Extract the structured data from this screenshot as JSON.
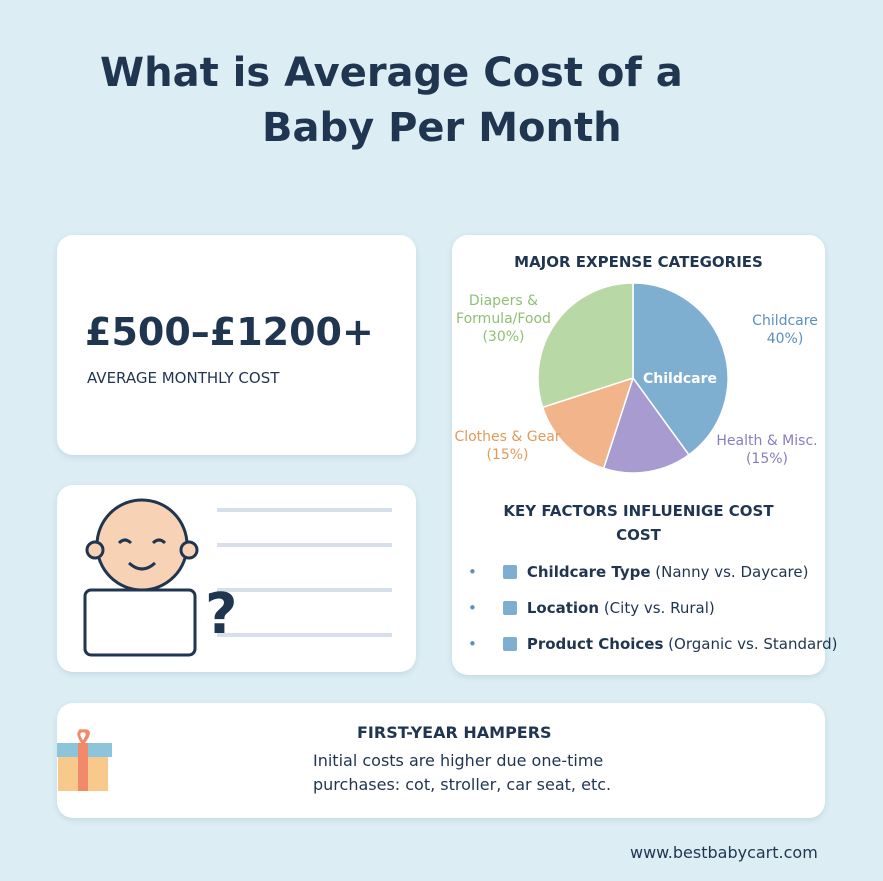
{
  "header": {
    "title_lines": [
      "What is Average Cost of a",
      "Baby Per Month"
    ]
  },
  "cost_card": {
    "amount": "£500–£1200+",
    "caption": "AVERAGE MONTHLY COST"
  },
  "chart_data": {
    "type": "pie",
    "title": "MAJOR EXPENSE CATEGORIES",
    "categories": [
      "Childcare",
      "Health & Misc.",
      "Clothes & Gear",
      "Diapers & Formula/Food"
    ],
    "values": [
      40,
      15,
      15,
      30
    ],
    "value_labels": [
      "40%)",
      "(15%)",
      "(15%)",
      "(30%)"
    ],
    "colors": [
      "#7eaed0",
      "#a79bd0",
      "#f2b48a",
      "#b8d8a6"
    ]
  },
  "factors": {
    "title_lines": [
      "KEY FACTORS INFLUENIGE COST",
      "COST"
    ],
    "items": [
      {
        "bold": "Childcare Type",
        "detail": "(Nanny vs. Daycare)"
      },
      {
        "bold": "Location",
        "detail": "(City vs. Rural)"
      },
      {
        "bold": "Product Choices",
        "detail": "(Organic vs. Standard)"
      }
    ]
  },
  "hampers": {
    "title": "FIRST-YEAR HAMPERS",
    "text_lines": [
      "Initial costs are higher due one-time",
      "purchases: cot, stroller, car seat, etc."
    ]
  },
  "footer": {
    "url": "www.bestbabycart.com"
  }
}
